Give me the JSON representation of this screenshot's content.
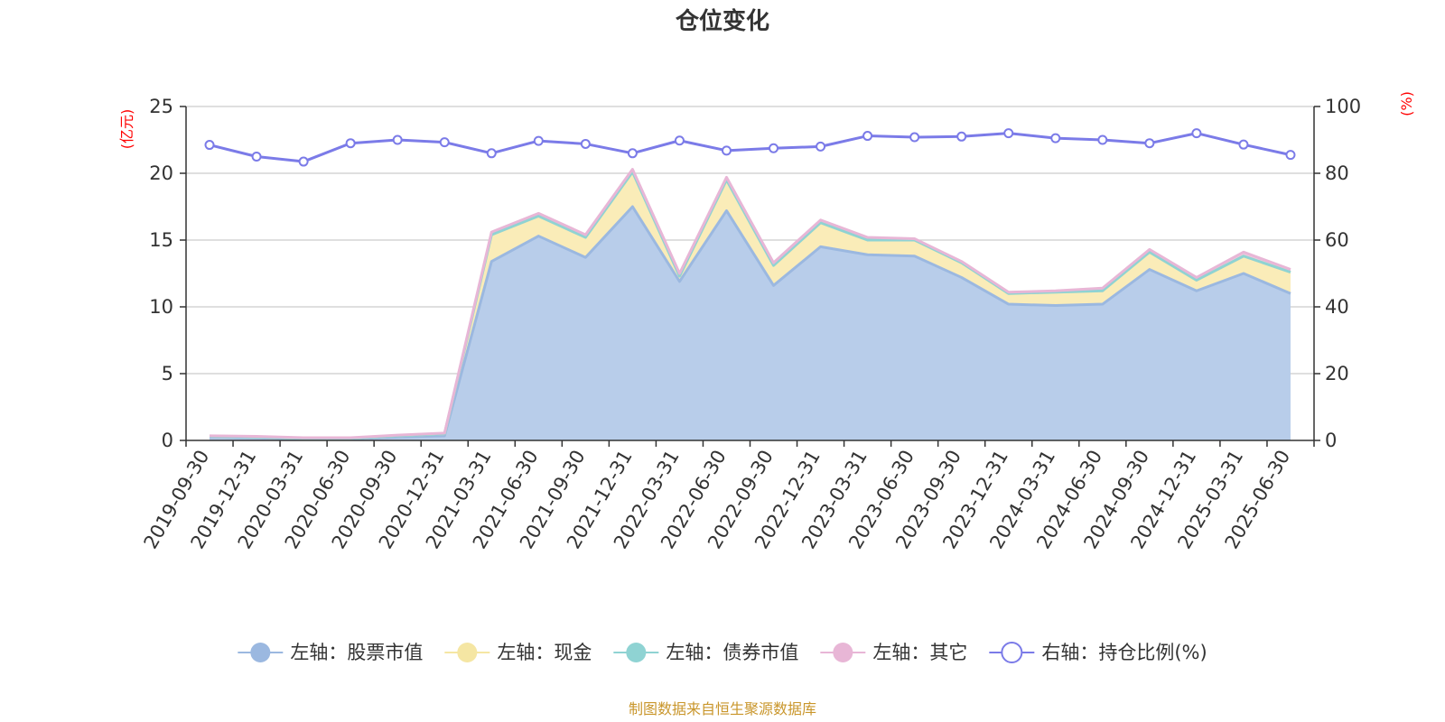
{
  "chart_data": {
    "type": "area",
    "title": "仓位变化",
    "categories": [
      "2019-09-30",
      "2019-12-31",
      "2020-03-31",
      "2020-06-30",
      "2020-09-30",
      "2020-12-31",
      "2021-03-31",
      "2021-06-30",
      "2021-09-30",
      "2021-12-31",
      "2022-03-31",
      "2022-06-30",
      "2022-09-30",
      "2022-12-31",
      "2023-03-31",
      "2023-06-30",
      "2023-09-30",
      "2023-12-31",
      "2024-03-31",
      "2024-06-30",
      "2024-09-30",
      "2024-12-31",
      "2025-03-31",
      "2025-06-30"
    ],
    "y_left": {
      "unit": "(亿元)",
      "ylim": [
        0,
        25
      ],
      "ticks": [
        0,
        5,
        10,
        15,
        20,
        25
      ]
    },
    "y_right": {
      "unit": "(%)",
      "ylim": [
        0,
        100
      ],
      "ticks": [
        0,
        20,
        40,
        60,
        80,
        100
      ]
    },
    "grid": true,
    "legend_position": "bottom",
    "series": [
      {
        "name": "左轴：股票市值",
        "axis": "left",
        "stack": "total",
        "color": "#9bb8e0",
        "fill": "#b8cdea",
        "values": [
          0.25,
          0.2,
          0.1,
          0.1,
          0.25,
          0.35,
          13.4,
          15.3,
          13.7,
          17.5,
          11.9,
          17.2,
          11.6,
          14.5,
          13.9,
          13.8,
          12.2,
          10.2,
          10.1,
          10.2,
          12.8,
          11.2,
          12.5,
          11.0
        ]
      },
      {
        "name": "左轴：现金",
        "axis": "left",
        "stack": "total",
        "color": "#f5e6a3",
        "fill": "#faecb8",
        "values": [
          0.05,
          0.05,
          0.05,
          0.05,
          0.1,
          0.15,
          2.0,
          1.5,
          1.5,
          2.6,
          0.4,
          2.3,
          1.5,
          1.8,
          1.1,
          1.2,
          1.1,
          0.8,
          1.0,
          1.0,
          1.3,
          0.8,
          1.3,
          1.6
        ]
      },
      {
        "name": "左轴：债券市值",
        "axis": "left",
        "stack": "total",
        "color": "#8fd3d3",
        "fill": "#a8dede",
        "values": [
          0,
          0,
          0,
          0,
          0,
          0,
          0,
          0,
          0,
          0,
          0,
          0,
          0,
          0,
          0,
          0,
          0,
          0,
          0,
          0,
          0,
          0,
          0,
          0
        ]
      },
      {
        "name": "左轴：其它",
        "axis": "left",
        "stack": "total",
        "color": "#e8b6d6",
        "fill": "#f0c8e0",
        "values": [
          0.05,
          0.05,
          0.05,
          0.05,
          0.05,
          0.05,
          0.2,
          0.2,
          0.2,
          0.2,
          0.2,
          0.2,
          0.2,
          0.2,
          0.2,
          0.1,
          0.1,
          0.1,
          0.1,
          0.2,
          0.2,
          0.2,
          0.3,
          0.2
        ]
      },
      {
        "name": "右轴：持仓比例(%)",
        "axis": "right",
        "color": "#7b7be8",
        "fill": "none",
        "values": [
          88.5,
          85.0,
          83.5,
          89.0,
          90.0,
          89.3,
          86.0,
          89.7,
          88.8,
          86.0,
          89.8,
          86.8,
          87.5,
          88.0,
          91.2,
          90.8,
          91.0,
          92.0,
          90.5,
          90.0,
          89.0,
          92.0,
          88.6,
          85.5
        ]
      }
    ]
  },
  "source": "制图数据来自恒生聚源数据库"
}
